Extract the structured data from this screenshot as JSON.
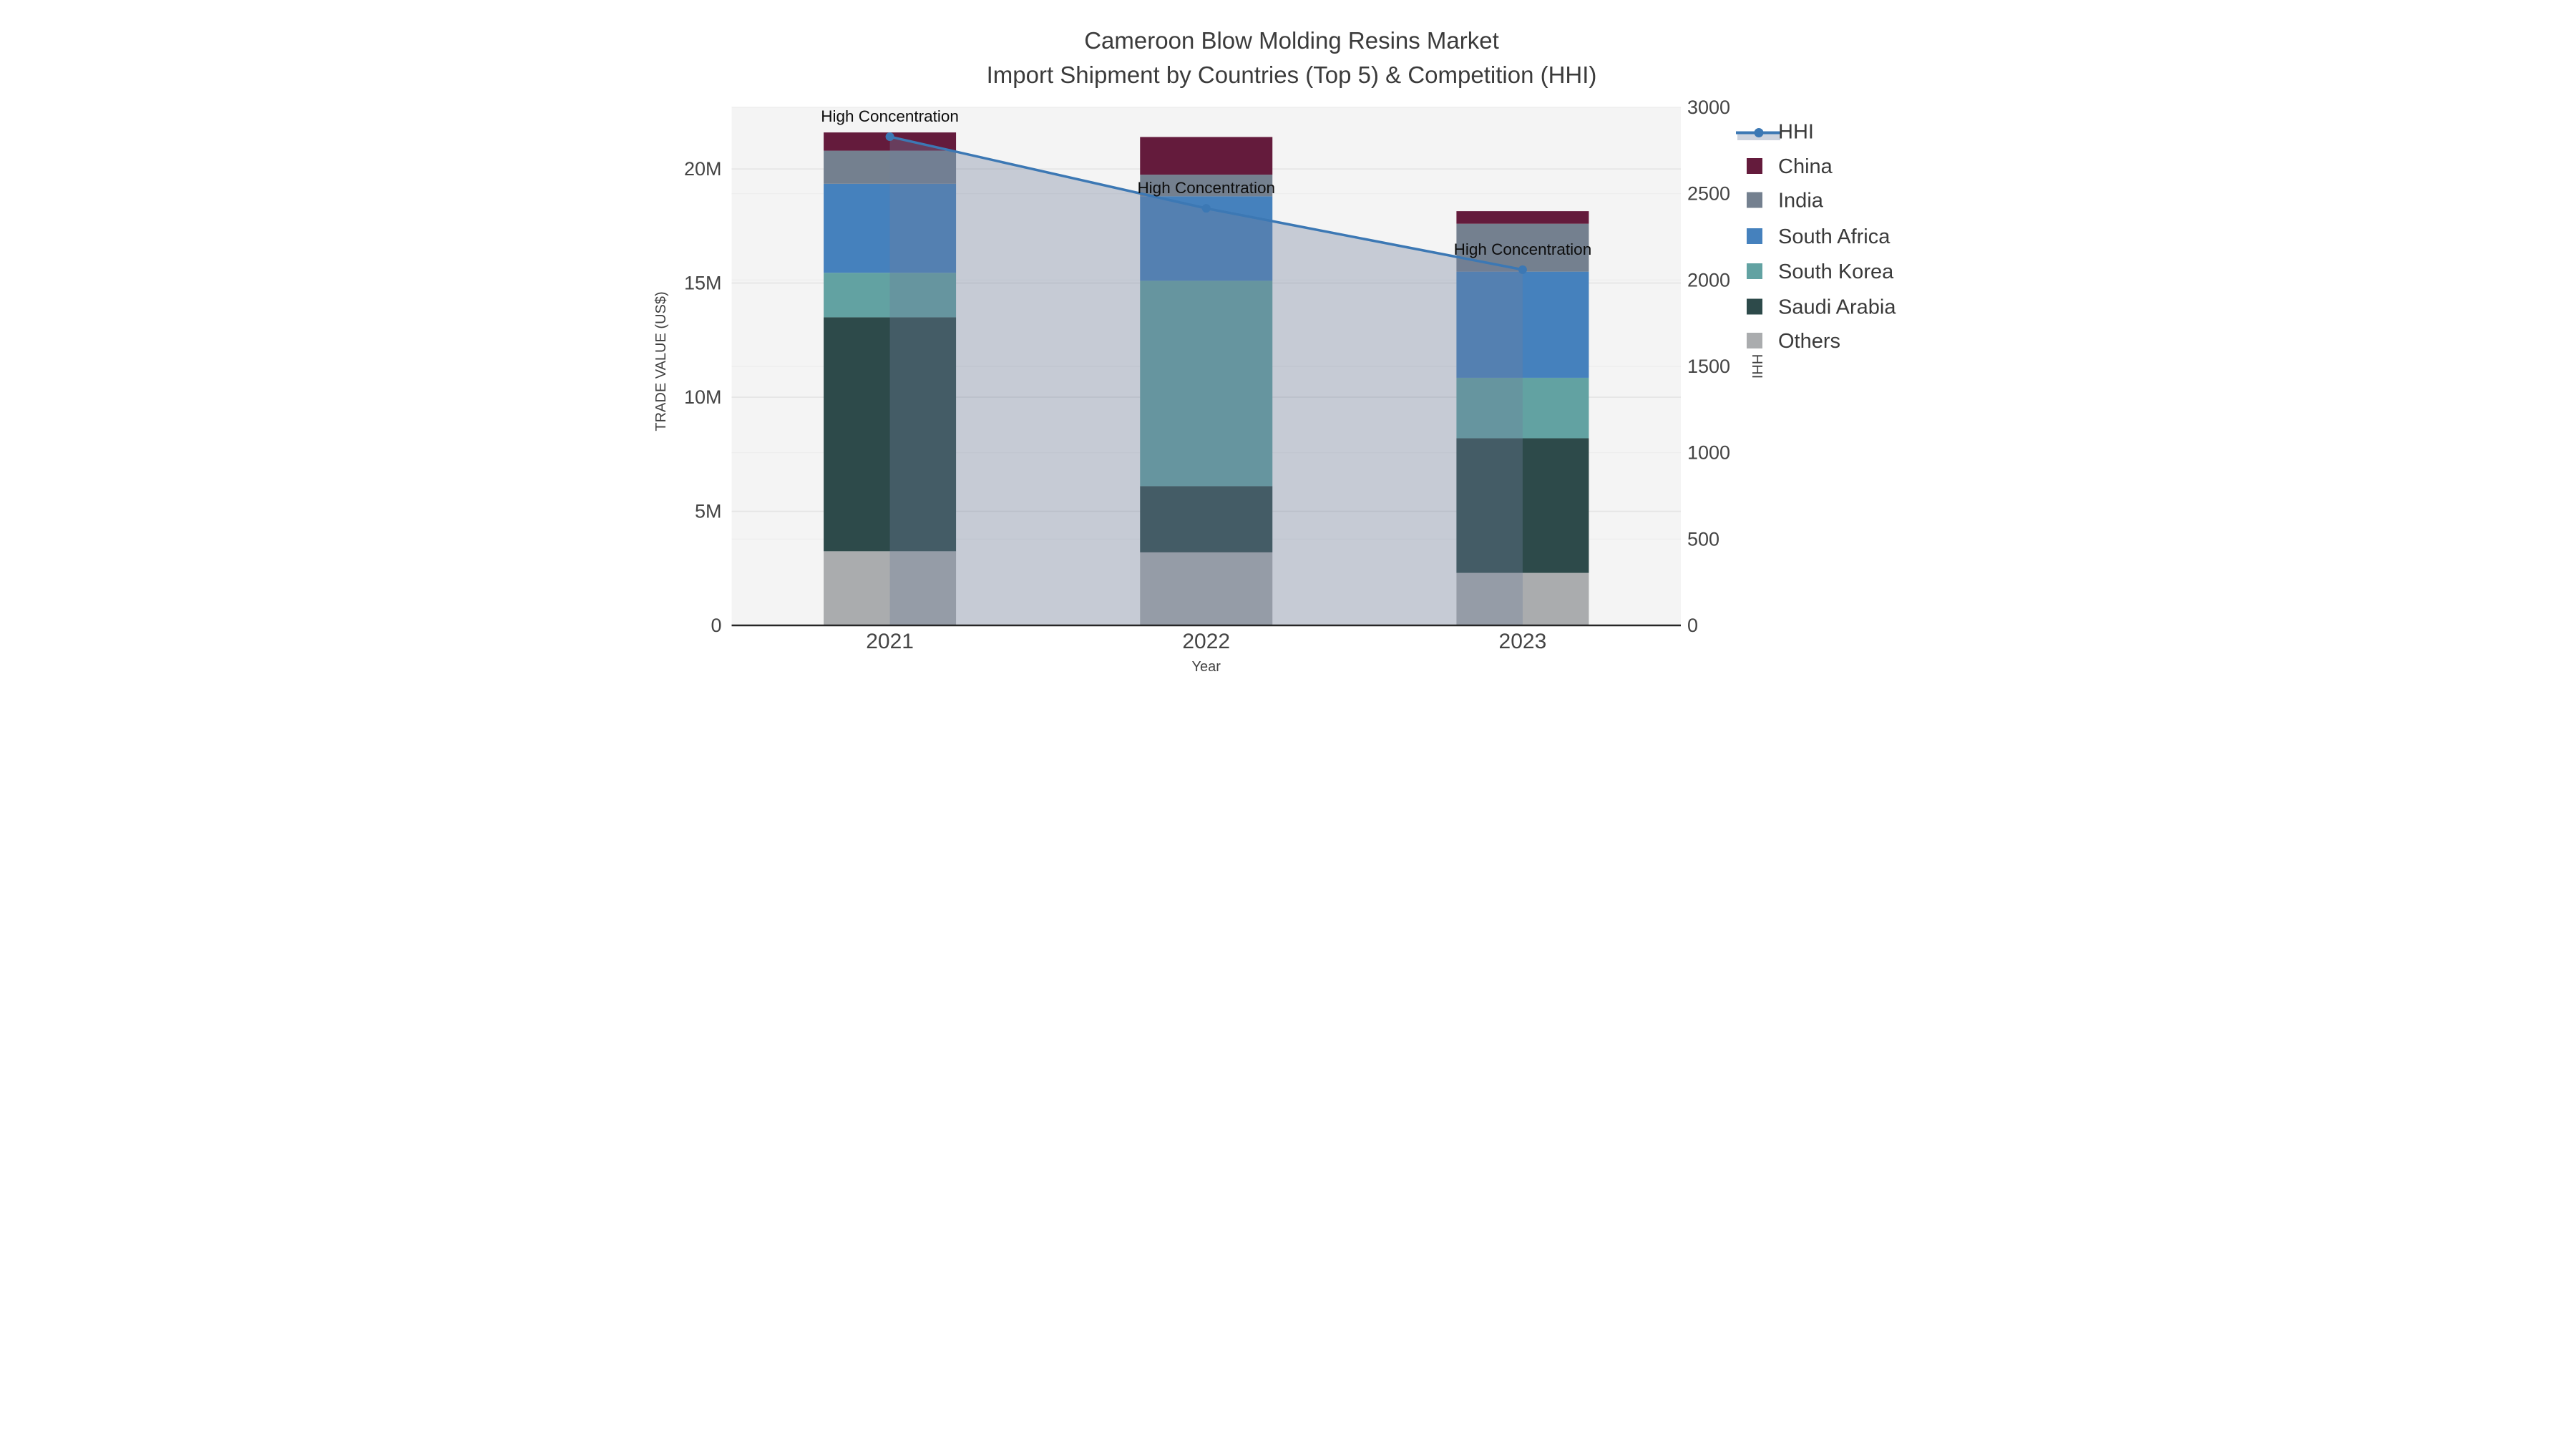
{
  "title": {
    "line1": "Cameroon Blow Molding Resins Market",
    "line2": "Import Shipment by Countries (Top 5) & Competition (HHI)"
  },
  "chart_data": {
    "type": "combo-stacked-bar-line",
    "categories": [
      "2021",
      "2022",
      "2023"
    ],
    "x_axis_title": "Year",
    "y_left": {
      "title": "TRADE VALUE (US$)",
      "tick_labels": [
        "0",
        "5M",
        "10M",
        "15M",
        "20M"
      ],
      "tick_values_musd": [
        0,
        5,
        10,
        15,
        20
      ],
      "axis_max_musd": 22.7
    },
    "y_right": {
      "title": "HHI",
      "tick_labels": [
        "0",
        "500",
        "1000",
        "1500",
        "2000",
        "2500",
        "3000"
      ],
      "tick_values": [
        0,
        500,
        1000,
        1500,
        2000,
        2500,
        3000
      ],
      "axis_max": 3000
    },
    "bar_series_bottom_to_top": [
      {
        "name": "Others",
        "color": "#aaacae",
        "values_musd": [
          3.25,
          3.2,
          2.3
        ]
      },
      {
        "name": "Saudi Arabia",
        "color": "#2d4a4a",
        "values_musd": [
          10.25,
          2.9,
          5.9
        ]
      },
      {
        "name": "South Korea",
        "color": "#62a2a2",
        "values_musd": [
          1.95,
          9.0,
          2.65
        ]
      },
      {
        "name": "South Africa",
        "color": "#4581bd",
        "values_musd": [
          3.9,
          3.7,
          4.65
        ]
      },
      {
        "name": "India",
        "color": "#74808f",
        "values_musd": [
          1.45,
          0.95,
          2.1
        ]
      },
      {
        "name": "China",
        "color": "#641b3c",
        "values_musd": [
          0.8,
          1.65,
          0.55
        ]
      }
    ],
    "stacked_totals_musd": [
      21.6,
      21.4,
      18.15
    ],
    "line_series": {
      "name": "HHI",
      "color": "#3c78b4",
      "fill_color": "rgba(112,125,155,0.35)",
      "values": [
        2830,
        2415,
        2060
      ]
    },
    "annotations": [
      {
        "text": "High Concentration",
        "category": "2021"
      },
      {
        "text": "High Concentration",
        "category": "2022"
      },
      {
        "text": "High Concentration",
        "category": "2023"
      }
    ],
    "legend_labels": [
      "HHI",
      "China",
      "India",
      "South Africa",
      "South Korea",
      "Saudi Arabia",
      "Others"
    ],
    "layout_hints": {
      "grid": "on",
      "legend_position": "right",
      "plot_background": "#f4f4f4"
    }
  },
  "styles": {
    "plot_bg": "#f4f4f4",
    "page_bg": "#ffffff",
    "grid_left_color": "#e4e4e4",
    "grid_right_color": "#ececec",
    "axis_line_color": "#262626",
    "tick_text_color": "#444444",
    "title_text_color": "#3b3b3b",
    "annotation_text_color": "#0d0d0d",
    "legend_text_color": "#3a3a3a",
    "legend_hhi_band_color": "#cdd3de"
  }
}
